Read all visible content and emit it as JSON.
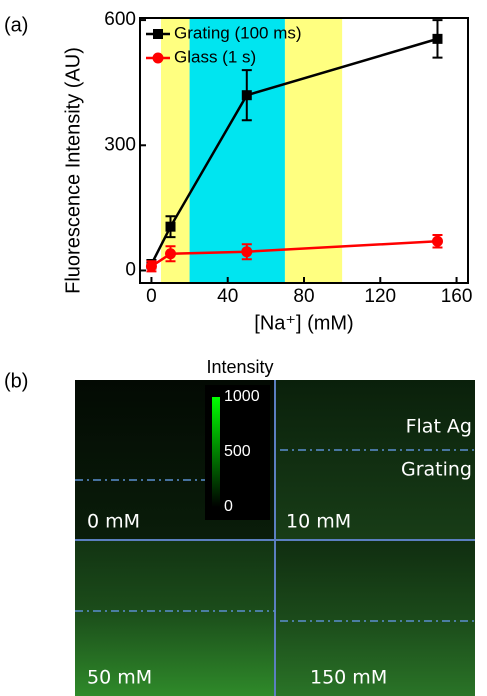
{
  "panel_labels": [
    "(a)",
    "(b)"
  ],
  "chart_data": {
    "type": "line",
    "xlabel": "[Na⁺] (mM)",
    "ylabel": "Fluorescence Intensity (AU)",
    "xlim": [
      -6,
      166
    ],
    "ylim": [
      -30,
      605
    ],
    "xticks": [
      0,
      40,
      80,
      120,
      160
    ],
    "yticks": [
      0,
      300,
      600
    ],
    "shaded_regions": [
      {
        "x": [
          5,
          20
        ],
        "color": "#ffff80"
      },
      {
        "x": [
          20,
          70
        ],
        "color": "#00e5f0"
      },
      {
        "x": [
          70,
          100
        ],
        "color": "#ffff80"
      }
    ],
    "legend": "upper left",
    "series": [
      {
        "name": "Grating (100 ms)",
        "color": "#000000",
        "marker": "square",
        "x": [
          0,
          10,
          50,
          150
        ],
        "values": [
          15,
          105,
          420,
          555
        ],
        "errors": [
          10,
          25,
          60,
          45
        ]
      },
      {
        "name": "Glass (1 s)",
        "color": "#ff0000",
        "marker": "circle",
        "x": [
          0,
          10,
          50,
          150
        ],
        "values": [
          10,
          40,
          45,
          70
        ],
        "errors": [
          12,
          18,
          18,
          15
        ]
      }
    ]
  },
  "image_panel": {
    "colorbar_title": "Intensity",
    "colorbar_range": [
      0,
      1000
    ],
    "colorbar_ticks": [
      1000,
      500,
      0
    ],
    "region_labels": [
      "Flat Ag",
      "Grating"
    ],
    "quadrant_labels": [
      "0 mM",
      "10 mM",
      "50 mM",
      "150 mM"
    ]
  }
}
